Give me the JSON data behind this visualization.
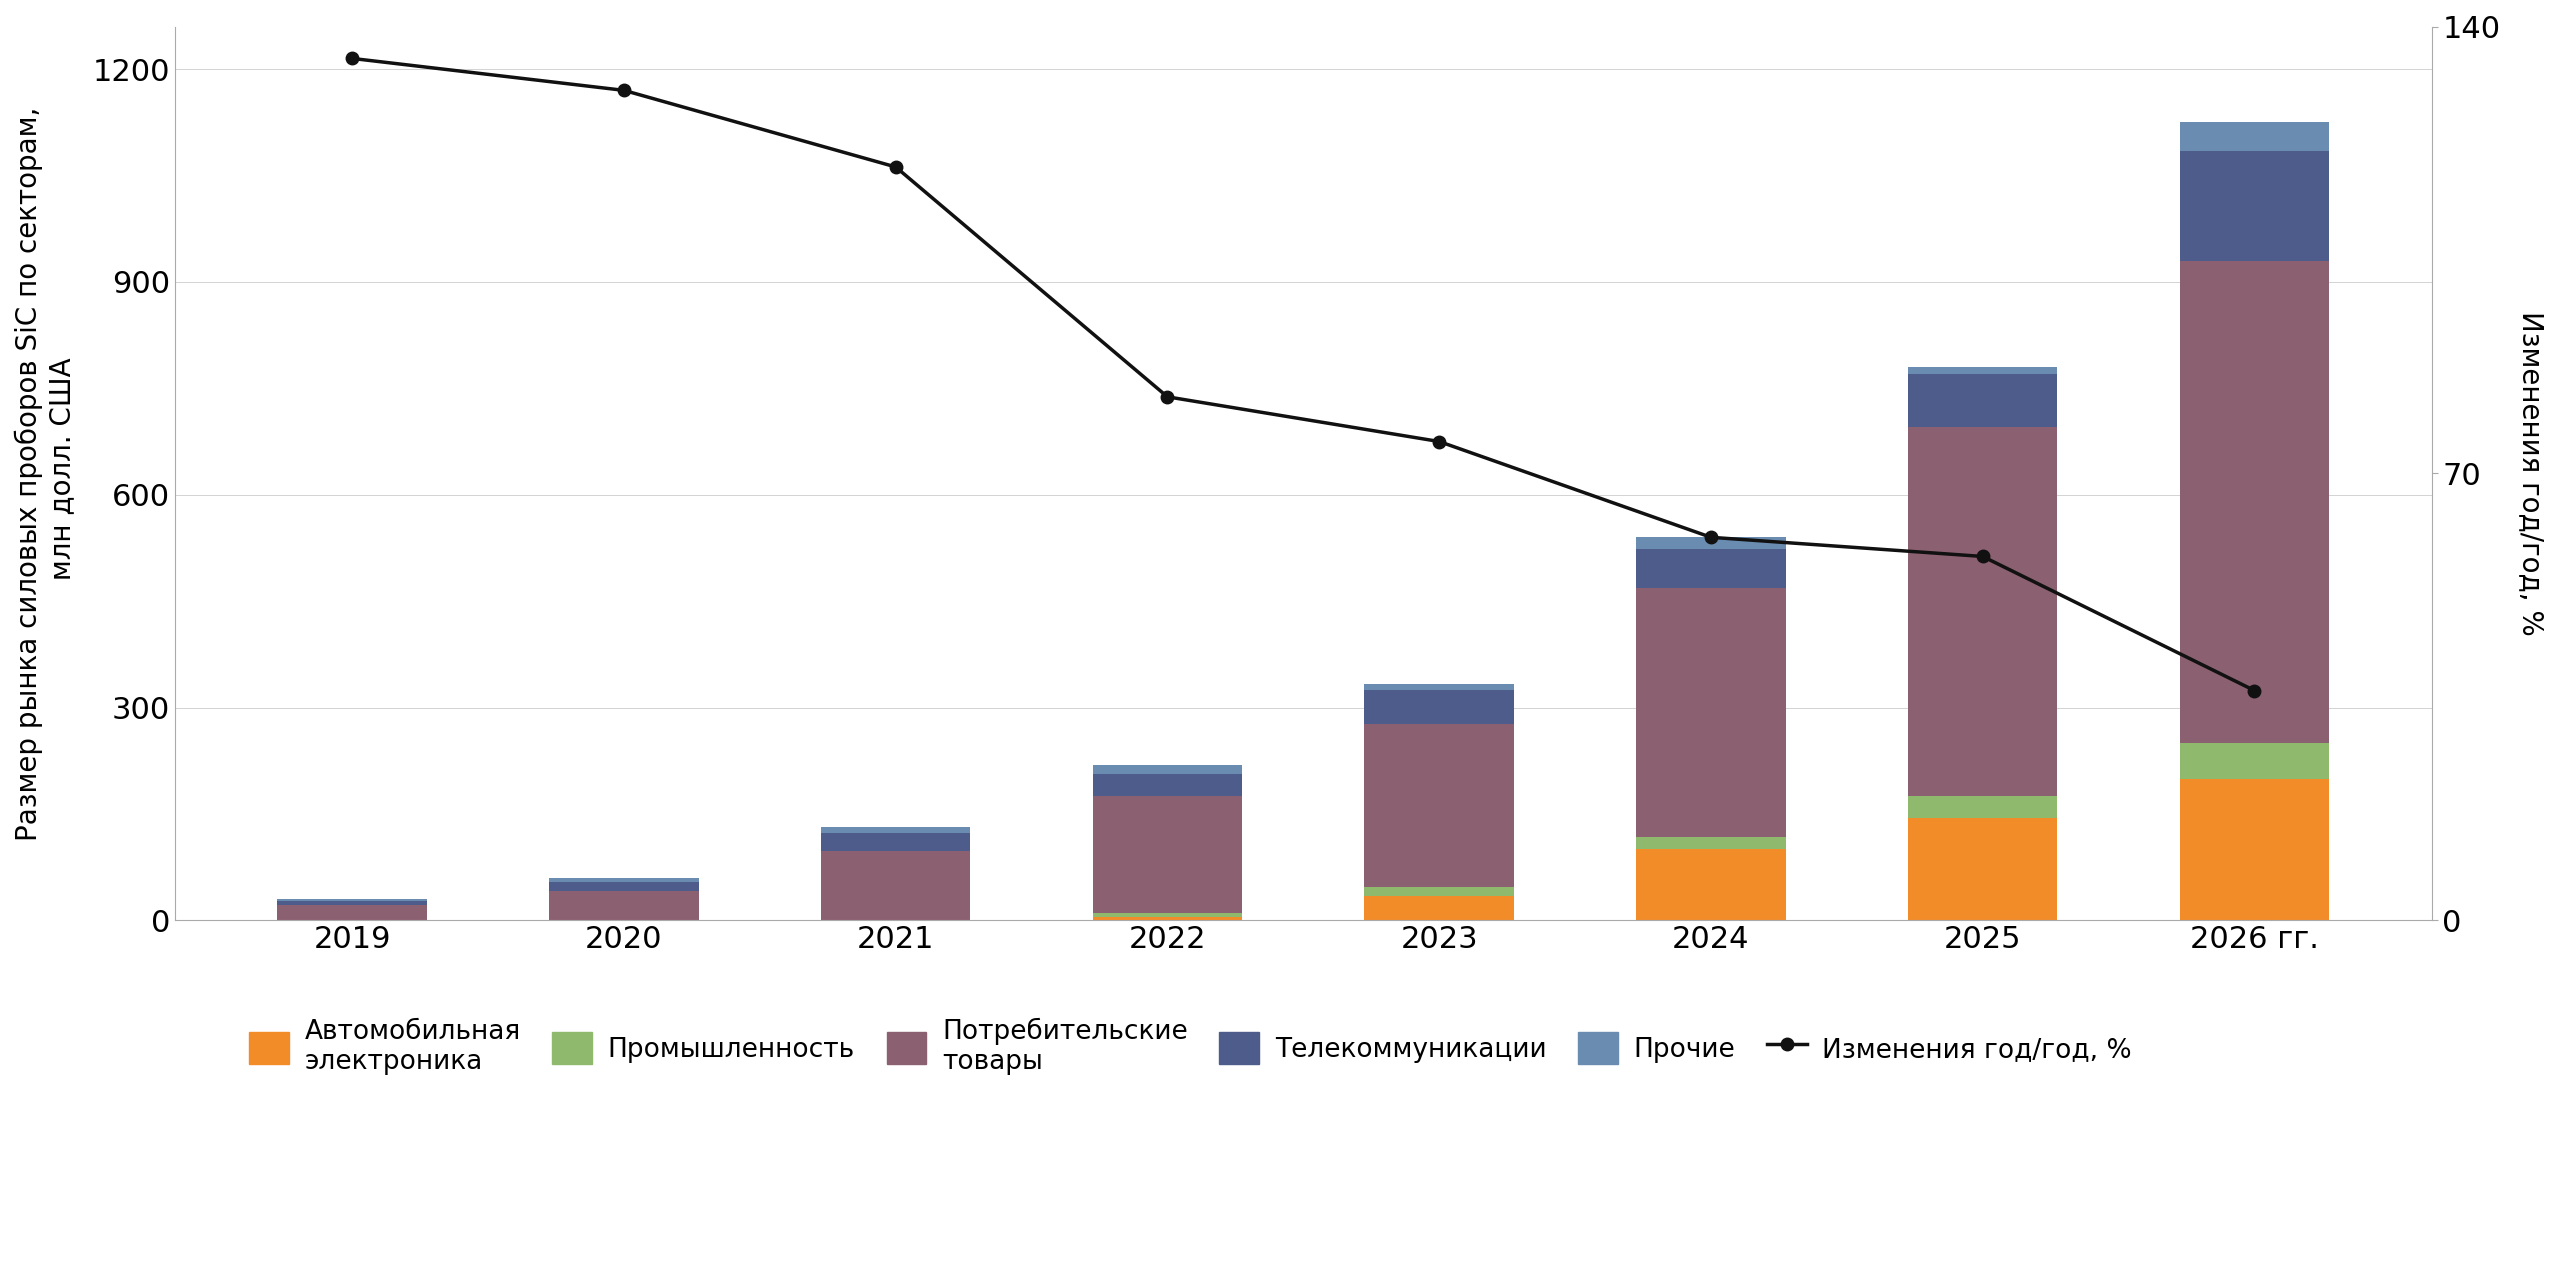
{
  "years": [
    "2019",
    "2020",
    "2021",
    "2022",
    "2023",
    "2024",
    "2025",
    "2026 гг."
  ],
  "automotive": [
    0,
    0,
    0,
    5,
    35,
    100,
    145,
    200
  ],
  "industrial": [
    0,
    0,
    0,
    5,
    12,
    18,
    30,
    50
  ],
  "consumer": [
    22,
    42,
    98,
    165,
    230,
    350,
    520,
    680
  ],
  "telecom": [
    5,
    12,
    25,
    32,
    48,
    55,
    75,
    155
  ],
  "other": [
    3,
    6,
    8,
    12,
    8,
    18,
    10,
    40
  ],
  "yoy_change": [
    135,
    130,
    118,
    82,
    75,
    60,
    57,
    36
  ],
  "bar_colors": {
    "automotive": "#f28c28",
    "industrial": "#8fba6e",
    "consumer": "#8b6070",
    "telecom": "#4d5c8a",
    "other": "#6a8cb0"
  },
  "line_color": "#111111",
  "ylabel_left": "Размер рынка силовых проборов SiC по секторам,\n млн долл. США",
  "ylabel_right": "Изменения год/год, %",
  "ylim_left": [
    0,
    1260
  ],
  "ylim_right": [
    0,
    140
  ],
  "yticks_left": [
    0,
    300,
    600,
    900,
    1200
  ],
  "yticks_right": [
    0,
    70,
    140
  ],
  "legend_labels": [
    "Автомобильная\nэлектроника",
    "Промышленность",
    "Потребительские\nтовары",
    "Телекоммуникации",
    "Прочие",
    "Изменения год/год, %"
  ],
  "background_color": "#ffffff",
  "grid_color": "#cccccc",
  "spine_color": "#aaaaaa"
}
